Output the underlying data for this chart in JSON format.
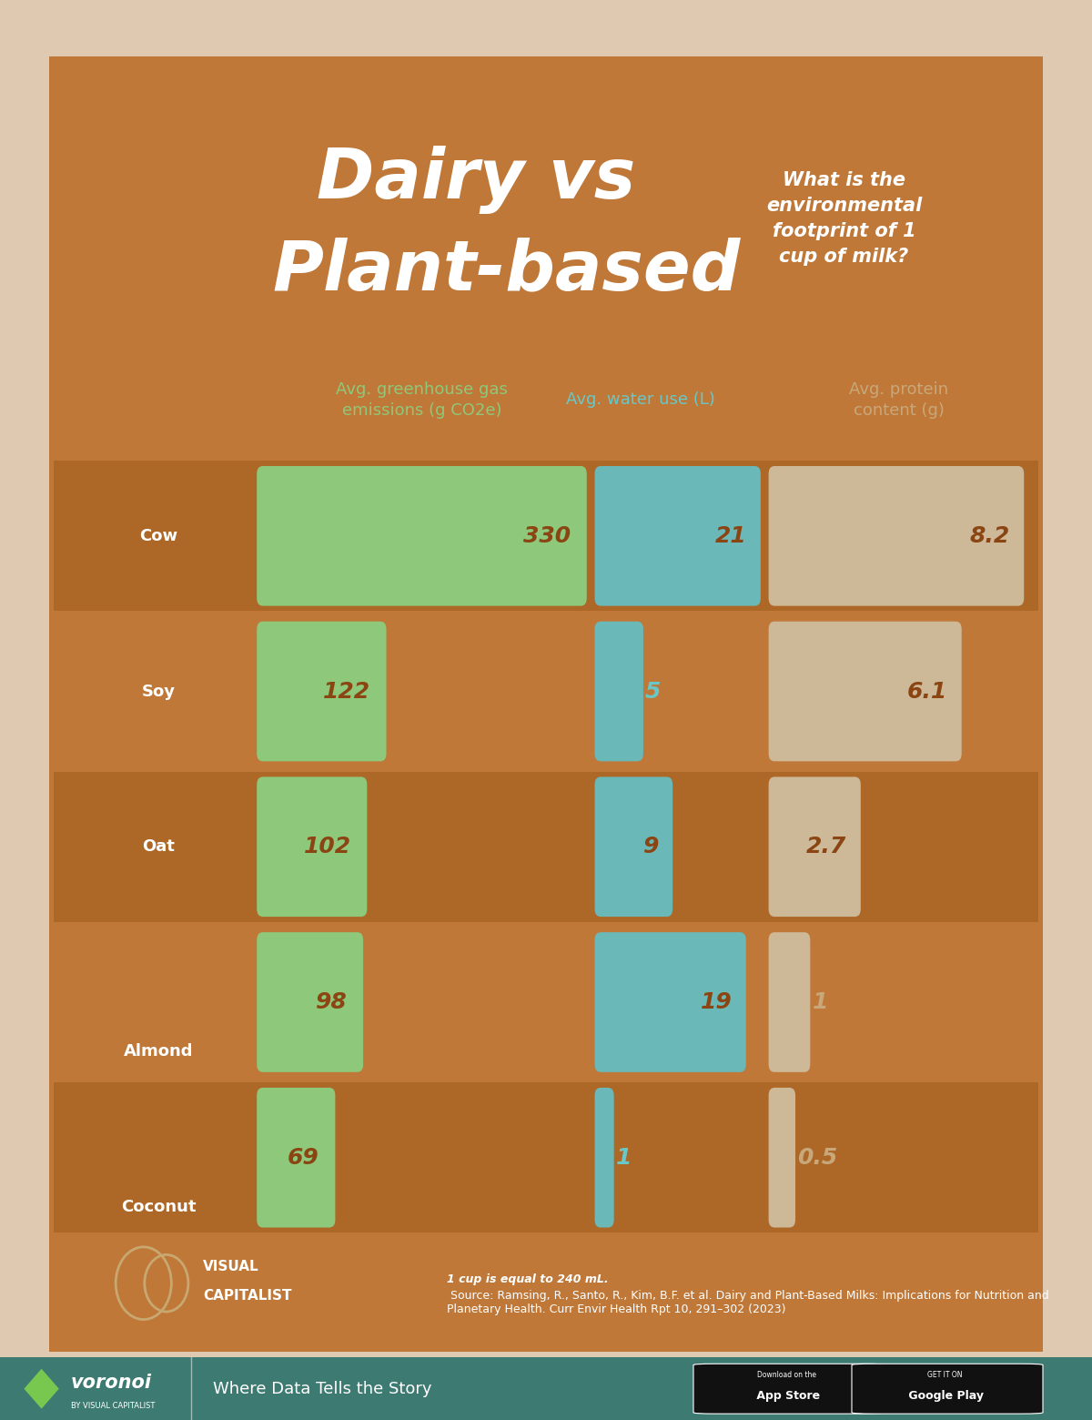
{
  "bg_outer": "#dfc9b0",
  "bg_card": "#bf7838",
  "bg_row_alt": "#ad6828",
  "bg_footer_bar": "#3d7b72",
  "bar_green": "#8ec87a",
  "bar_teal": "#6ab8b8",
  "bar_tan": "#cdb898",
  "text_white": "#ffffff",
  "text_green": "#8ec87a",
  "text_teal": "#68c8c8",
  "text_tan": "#c8a87a",
  "text_brown_num": "#8b4513",
  "title_line1": "Dairy vs",
  "title_line2": "Plant-based",
  "subtitle": "What is the\nenvironmental\nfootprint of 1\ncup of milk?",
  "col_header_ghg": "Avg. greenhouse gas\nemissions (g CO2e)",
  "col_header_water": "Avg. water use (L)",
  "col_header_protein": "Avg. protein\ncontent (g)",
  "milks": [
    "Cow",
    "Soy",
    "Oat",
    "Almond",
    "Coconut"
  ],
  "ghg": [
    330,
    122,
    102,
    98,
    69
  ],
  "water": [
    21,
    5,
    9,
    19,
    1
  ],
  "protein": [
    8.2,
    6.1,
    2.7,
    1.0,
    0.5
  ],
  "ghg_display": [
    "330",
    "122",
    "102",
    "98",
    "69"
  ],
  "water_display": [
    "21",
    "5",
    "9",
    "19",
    "1"
  ],
  "protein_display": [
    "8.2",
    "6.1",
    "2.7",
    "1",
    "0.5"
  ],
  "ghg_max": 330,
  "water_max": 21,
  "protein_max": 8.2,
  "source_bold": "1 cup is equal to 240 mL.",
  "source_rest": " Source: Ramsing, R., Santo, R., Kim, B.F. et\nal. Dairy and Plant-Based Milks: Implications for Nutrition and\nPlanetary Health. Curr Envir Health Rpt 10, 291–302 (2023)",
  "footer_brand": "voronoi",
  "footer_sub": "BY VISUAL CAPITALIST",
  "footer_tagline": "Where Data Tells the Story"
}
